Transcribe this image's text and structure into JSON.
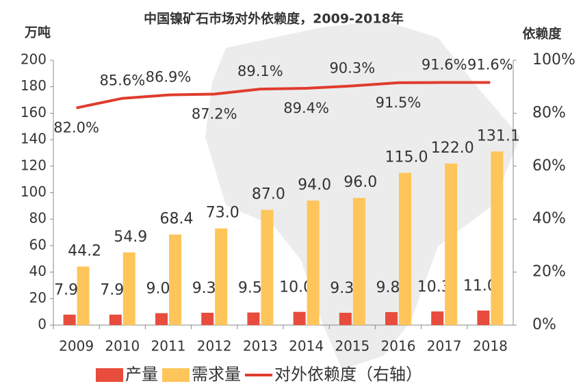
{
  "chart_data": {
    "type": "bar",
    "title": "中国镍矿石市场对外依赖度，2009-2018年",
    "y_label": "万吨",
    "y2_label": "依赖度",
    "categories": [
      "2009",
      "2010",
      "2011",
      "2012",
      "2013",
      "2014",
      "2015",
      "2016",
      "2017",
      "2018"
    ],
    "series": [
      {
        "name": "产量",
        "color": "#e84c3d",
        "type": "bar",
        "values": [
          7.9,
          7.9,
          9.0,
          9.3,
          9.5,
          10.0,
          9.3,
          9.8,
          10.3,
          11.0
        ],
        "value_labels": [
          "7.9",
          "7.9",
          "9.0",
          "9.3",
          "9.5",
          "10.0",
          "9.3",
          "9.8",
          "10.3",
          "11.0"
        ]
      },
      {
        "name": "需求量",
        "color": "#fec55a",
        "type": "bar",
        "values": [
          44.2,
          54.9,
          68.4,
          73.0,
          87.0,
          94.0,
          96.0,
          115.0,
          122.0,
          131.1
        ],
        "value_labels": [
          "44.2",
          "54.9",
          "68.4",
          "73.0",
          "87.0",
          "94.0",
          "96.0",
          "115.0",
          "122.0",
          "131.1"
        ]
      },
      {
        "name": "对外依赖度（右轴）",
        "color": "#e03c2d",
        "type": "line",
        "axis": "y2",
        "values": [
          82.0,
          85.6,
          86.9,
          87.2,
          89.1,
          89.4,
          90.3,
          91.5,
          91.6,
          91.6
        ],
        "value_labels": [
          "82.0%",
          "85.6%",
          "86.9%",
          "87.2%",
          "89.1%",
          "89.4%",
          "90.3%",
          "91.5%",
          "91.6%",
          "91.6%"
        ]
      }
    ],
    "ylim": [
      0,
      200
    ],
    "yticks": [
      0,
      20,
      40,
      60,
      80,
      100,
      120,
      140,
      160,
      180,
      200
    ],
    "y2lim": [
      0,
      100
    ],
    "y2ticks": [
      {
        "value": 0,
        "label": "0%"
      },
      {
        "value": 20,
        "label": "20%"
      },
      {
        "value": 40,
        "label": "40%"
      },
      {
        "value": 60,
        "label": "60%"
      },
      {
        "value": 80,
        "label": "80%"
      },
      {
        "value": 100,
        "label": "100%"
      }
    ],
    "legend": "bottom"
  }
}
